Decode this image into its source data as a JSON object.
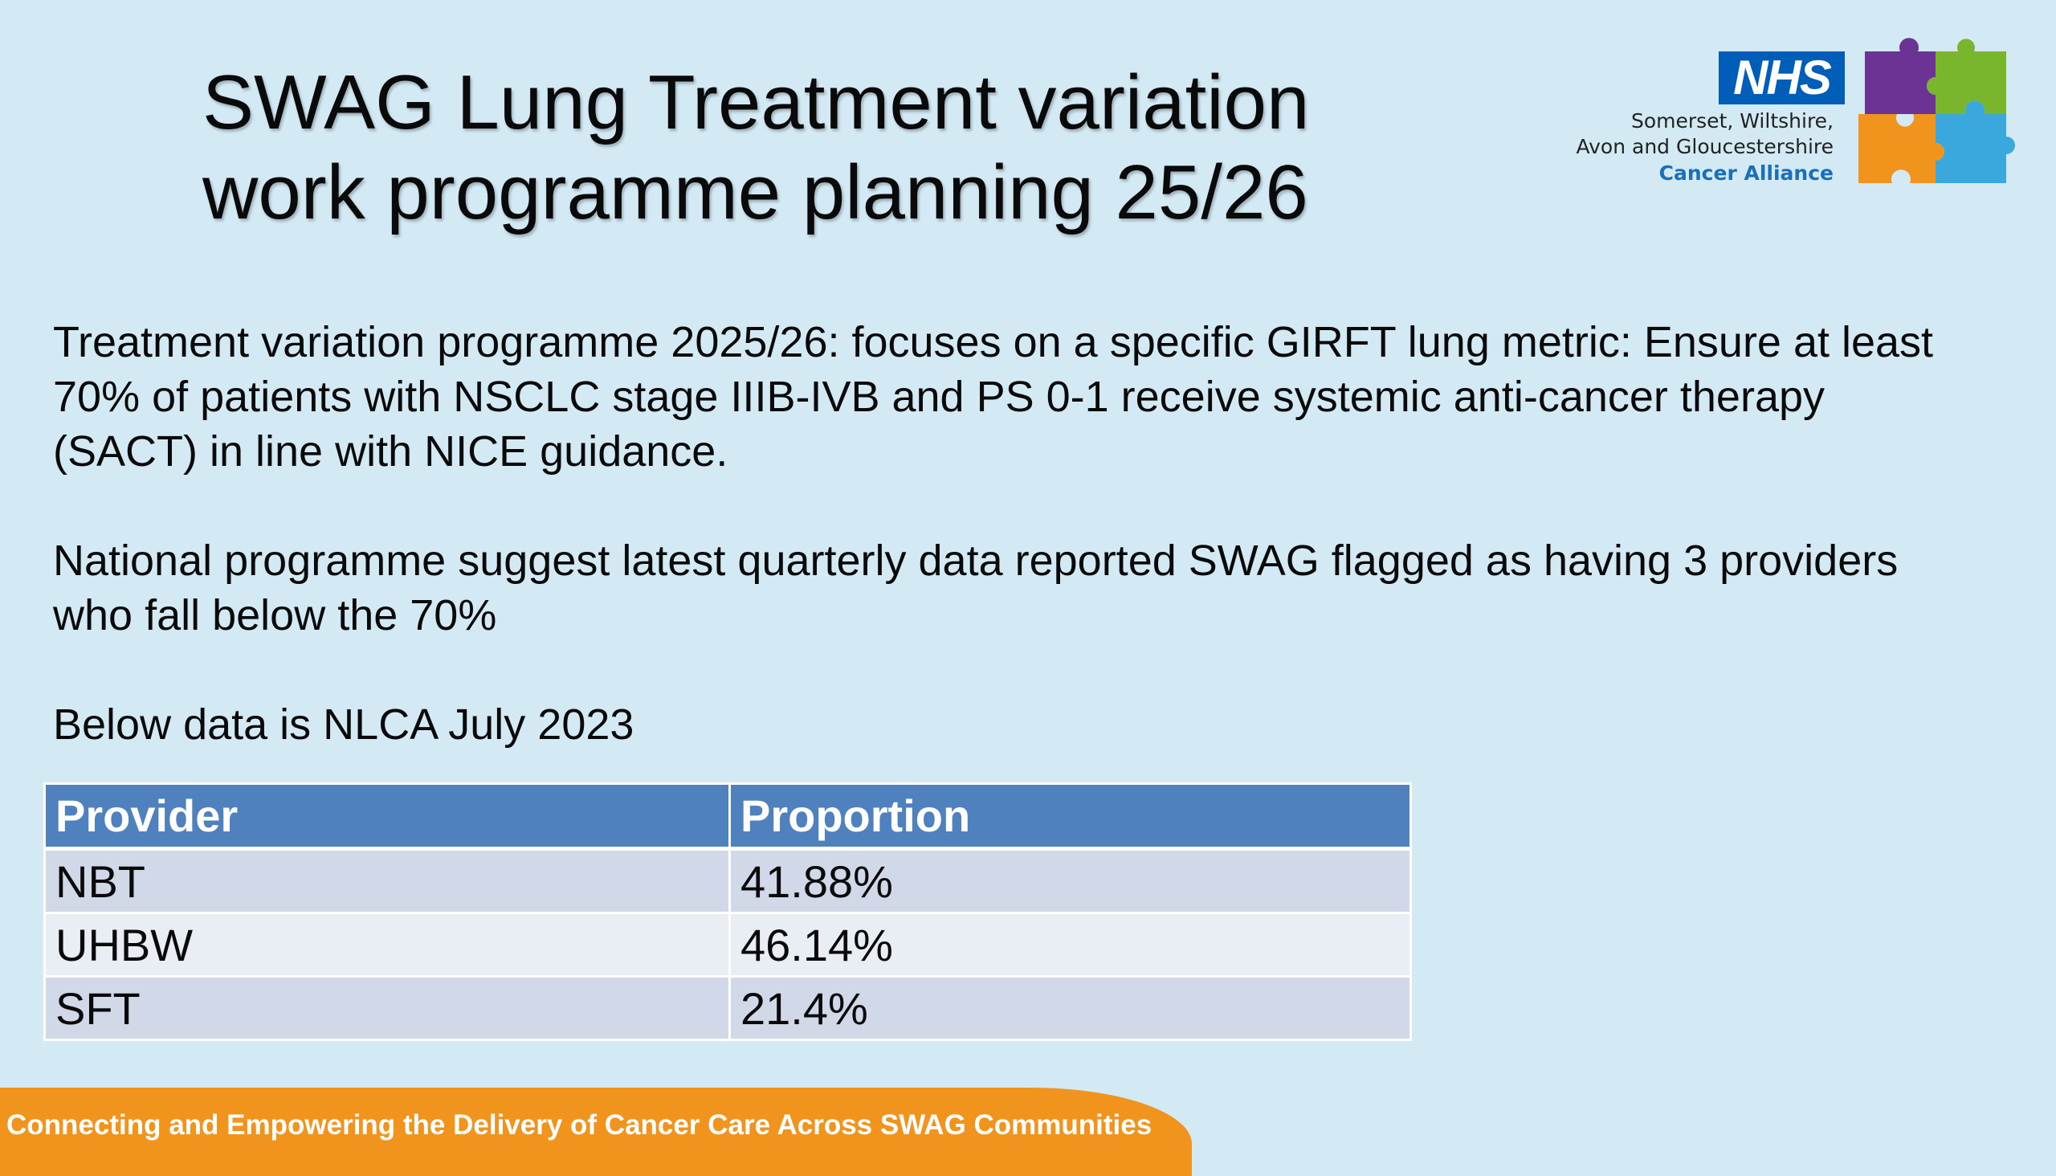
{
  "slide": {
    "title_line1": "SWAG Lung Treatment variation",
    "title_line2": "work programme planning 25/26"
  },
  "logo": {
    "nhs": "NHS",
    "line1": "Somerset, Wiltshire,",
    "line2": "Avon and Gloucestershire",
    "line3": "Cancer Alliance",
    "colors": {
      "nhs_blue": "#005eb8",
      "purple": "#6b3494",
      "green": "#7ab52e",
      "orange": "#f0941d",
      "blue": "#3aa8dc"
    }
  },
  "body": {
    "para1": "Treatment variation programme 2025/26: focuses on a specific GIRFT lung metric: Ensure at least 70% of patients with NSCLC stage IIIB-IVB and PS 0-1 receive systemic anti-cancer therapy (SACT) in line with NICE guidance.",
    "para2": "National programme suggest latest quarterly data reported SWAG flagged as having 3 providers who fall below the 70%",
    "para3": "Below data is NLCA July 2023"
  },
  "table": {
    "headers": [
      "Provider",
      "Proportion"
    ],
    "rows": [
      [
        "NBT",
        "41.88%"
      ],
      [
        "UHBW",
        "46.14%"
      ],
      [
        "SFT",
        "21.4%"
      ]
    ]
  },
  "footer": {
    "banner": "Connecting and Empowering the Delivery of Cancer Care Across SWAG Communities"
  }
}
